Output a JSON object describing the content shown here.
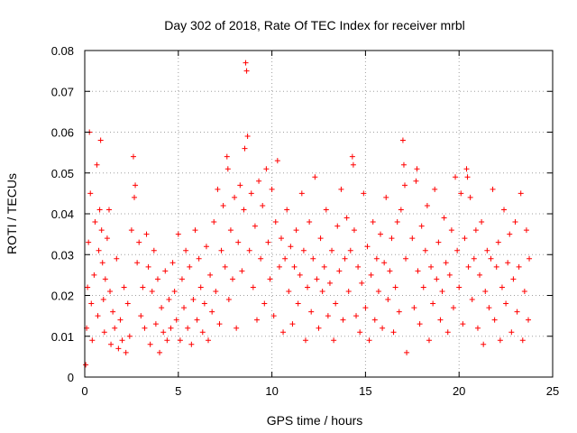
{
  "chart_data": {
    "type": "scatter",
    "title": "Day 302 of 2018, Rate Of TEC Index for receiver mrbl",
    "xlabel": "GPS time / hours",
    "ylabel": "ROTI / TECUs",
    "xlim": [
      0,
      25
    ],
    "ylim": [
      0,
      0.08
    ],
    "xticks": [
      0,
      5,
      10,
      15,
      20,
      25
    ],
    "xtick_labels": [
      "0",
      "5",
      "10",
      "15",
      "20",
      "25"
    ],
    "yticks": [
      0,
      0.01,
      0.02,
      0.03,
      0.04,
      0.05,
      0.06,
      0.07,
      0.08
    ],
    "ytick_labels": [
      "0",
      "0.01",
      "0.02",
      "0.03",
      "0.04",
      "0.05",
      "0.06",
      "0.07",
      "0.08"
    ],
    "grid": true,
    "marker": "+",
    "color": "#ff0000",
    "series": [
      {
        "points": [
          [
            0.05,
            0.003
          ],
          [
            0.1,
            0.012
          ],
          [
            0.15,
            0.022
          ],
          [
            0.2,
            0.033
          ],
          [
            0.25,
            0.06
          ],
          [
            0.3,
            0.045
          ],
          [
            0.35,
            0.018
          ],
          [
            0.4,
            0.009
          ],
          [
            0.5,
            0.025
          ],
          [
            0.55,
            0.038
          ],
          [
            0.65,
            0.052
          ],
          [
            0.7,
            0.015
          ],
          [
            0.75,
            0.031
          ],
          [
            0.8,
            0.041
          ],
          [
            0.85,
            0.058
          ],
          [
            0.9,
            0.036
          ],
          [
            0.95,
            0.028
          ],
          [
            1.0,
            0.019
          ],
          [
            1.05,
            0.011
          ],
          [
            1.1,
            0.024
          ],
          [
            1.2,
            0.034
          ],
          [
            1.3,
            0.041
          ],
          [
            1.35,
            0.021
          ],
          [
            1.4,
            0.008
          ],
          [
            1.5,
            0.016
          ],
          [
            1.6,
            0.012
          ],
          [
            1.7,
            0.029
          ],
          [
            1.8,
            0.007
          ],
          [
            1.9,
            0.014
          ],
          [
            2.0,
            0.009
          ],
          [
            2.1,
            0.022
          ],
          [
            2.2,
            0.006
          ],
          [
            2.3,
            0.018
          ],
          [
            2.4,
            0.01
          ],
          [
            2.5,
            0.036
          ],
          [
            2.6,
            0.054
          ],
          [
            2.65,
            0.044
          ],
          [
            2.7,
            0.047
          ],
          [
            2.8,
            0.028
          ],
          [
            2.9,
            0.033
          ],
          [
            3.0,
            0.015
          ],
          [
            3.1,
            0.022
          ],
          [
            3.2,
            0.012
          ],
          [
            3.3,
            0.035
          ],
          [
            3.4,
            0.027
          ],
          [
            3.5,
            0.008
          ],
          [
            3.6,
            0.021
          ],
          [
            3.7,
            0.031
          ],
          [
            3.8,
            0.013
          ],
          [
            3.9,
            0.024
          ],
          [
            4.0,
            0.006
          ],
          [
            4.1,
            0.017
          ],
          [
            4.2,
            0.011
          ],
          [
            4.3,
            0.026
          ],
          [
            4.4,
            0.009
          ],
          [
            4.5,
            0.019
          ],
          [
            4.6,
            0.012
          ],
          [
            4.7,
            0.028
          ],
          [
            4.8,
            0.021
          ],
          [
            4.9,
            0.014
          ],
          [
            5.0,
            0.035
          ],
          [
            5.1,
            0.009
          ],
          [
            5.2,
            0.024
          ],
          [
            5.3,
            0.017
          ],
          [
            5.4,
            0.031
          ],
          [
            5.5,
            0.012
          ],
          [
            5.6,
            0.027
          ],
          [
            5.7,
            0.008
          ],
          [
            5.8,
            0.019
          ],
          [
            5.9,
            0.036
          ],
          [
            6.0,
            0.014
          ],
          [
            6.1,
            0.029
          ],
          [
            6.2,
            0.022
          ],
          [
            6.3,
            0.011
          ],
          [
            6.4,
            0.018
          ],
          [
            6.5,
            0.032
          ],
          [
            6.6,
            0.009
          ],
          [
            6.7,
            0.025
          ],
          [
            6.8,
            0.016
          ],
          [
            6.9,
            0.038
          ],
          [
            7.0,
            0.021
          ],
          [
            7.1,
            0.046
          ],
          [
            7.2,
            0.013
          ],
          [
            7.3,
            0.031
          ],
          [
            7.4,
            0.042
          ],
          [
            7.5,
            0.027
          ],
          [
            7.6,
            0.054
          ],
          [
            7.65,
            0.051
          ],
          [
            7.7,
            0.019
          ],
          [
            7.8,
            0.036
          ],
          [
            7.9,
            0.024
          ],
          [
            8.0,
            0.044
          ],
          [
            8.1,
            0.012
          ],
          [
            8.2,
            0.033
          ],
          [
            8.3,
            0.047
          ],
          [
            8.4,
            0.026
          ],
          [
            8.5,
            0.041
          ],
          [
            8.55,
            0.056
          ],
          [
            8.6,
            0.077
          ],
          [
            8.65,
            0.075
          ],
          [
            8.7,
            0.059
          ],
          [
            8.8,
            0.031
          ],
          [
            8.9,
            0.045
          ],
          [
            9.0,
            0.022
          ],
          [
            9.1,
            0.037
          ],
          [
            9.2,
            0.014
          ],
          [
            9.3,
            0.048
          ],
          [
            9.4,
            0.029
          ],
          [
            9.5,
            0.042
          ],
          [
            9.6,
            0.018
          ],
          [
            9.7,
            0.051
          ],
          [
            9.8,
            0.033
          ],
          [
            9.9,
            0.024
          ],
          [
            10.0,
            0.046
          ],
          [
            10.1,
            0.015
          ],
          [
            10.2,
            0.038
          ],
          [
            10.3,
            0.053
          ],
          [
            10.4,
            0.027
          ],
          [
            10.5,
            0.034
          ],
          [
            10.6,
            0.011
          ],
          [
            10.7,
            0.029
          ],
          [
            10.8,
            0.041
          ],
          [
            10.9,
            0.021
          ],
          [
            11.0,
            0.032
          ],
          [
            11.1,
            0.013
          ],
          [
            11.2,
            0.027
          ],
          [
            11.3,
            0.036
          ],
          [
            11.4,
            0.018
          ],
          [
            11.5,
            0.025
          ],
          [
            11.6,
            0.045
          ],
          [
            11.7,
            0.031
          ],
          [
            11.8,
            0.009
          ],
          [
            11.9,
            0.022
          ],
          [
            12.0,
            0.038
          ],
          [
            12.1,
            0.016
          ],
          [
            12.2,
            0.029
          ],
          [
            12.3,
            0.049
          ],
          [
            12.4,
            0.024
          ],
          [
            12.5,
            0.012
          ],
          [
            12.6,
            0.034
          ],
          [
            12.7,
            0.021
          ],
          [
            12.8,
            0.027
          ],
          [
            12.9,
            0.041
          ],
          [
            13.0,
            0.015
          ],
          [
            13.1,
            0.023
          ],
          [
            13.2,
            0.031
          ],
          [
            13.3,
            0.009
          ],
          [
            13.4,
            0.018
          ],
          [
            13.5,
            0.037
          ],
          [
            13.6,
            0.026
          ],
          [
            13.7,
            0.046
          ],
          [
            13.8,
            0.014
          ],
          [
            13.9,
            0.029
          ],
          [
            14.0,
            0.039
          ],
          [
            14.1,
            0.021
          ],
          [
            14.2,
            0.031
          ],
          [
            14.3,
            0.054
          ],
          [
            14.35,
            0.052
          ],
          [
            14.4,
            0.036
          ],
          [
            14.5,
            0.015
          ],
          [
            14.6,
            0.027
          ],
          [
            14.7,
            0.011
          ],
          [
            14.8,
            0.023
          ],
          [
            14.9,
            0.045
          ],
          [
            15.0,
            0.017
          ],
          [
            15.1,
            0.032
          ],
          [
            15.2,
            0.009
          ],
          [
            15.3,
            0.025
          ],
          [
            15.4,
            0.038
          ],
          [
            15.5,
            0.014
          ],
          [
            15.6,
            0.029
          ],
          [
            15.7,
            0.021
          ],
          [
            15.8,
            0.035
          ],
          [
            15.9,
            0.012
          ],
          [
            16.0,
            0.028
          ],
          [
            16.1,
            0.044
          ],
          [
            16.2,
            0.019
          ],
          [
            16.3,
            0.026
          ],
          [
            16.4,
            0.034
          ],
          [
            16.5,
            0.011
          ],
          [
            16.6,
            0.022
          ],
          [
            16.7,
            0.038
          ],
          [
            16.8,
            0.016
          ],
          [
            16.9,
            0.041
          ],
          [
            17.0,
            0.058
          ],
          [
            17.05,
            0.052
          ],
          [
            17.1,
            0.047
          ],
          [
            17.15,
            0.029
          ],
          [
            17.2,
            0.006
          ],
          [
            17.5,
            0.034
          ],
          [
            17.6,
            0.017
          ],
          [
            17.7,
            0.048
          ],
          [
            17.75,
            0.051
          ],
          [
            17.8,
            0.026
          ],
          [
            17.9,
            0.013
          ],
          [
            18.0,
            0.037
          ],
          [
            18.1,
            0.022
          ],
          [
            18.2,
            0.031
          ],
          [
            18.3,
            0.042
          ],
          [
            18.4,
            0.009
          ],
          [
            18.5,
            0.027
          ],
          [
            18.6,
            0.018
          ],
          [
            18.7,
            0.046
          ],
          [
            18.8,
            0.024
          ],
          [
            18.9,
            0.033
          ],
          [
            19.0,
            0.014
          ],
          [
            19.1,
            0.021
          ],
          [
            19.2,
            0.039
          ],
          [
            19.3,
            0.028
          ],
          [
            19.4,
            0.011
          ],
          [
            19.5,
            0.025
          ],
          [
            19.6,
            0.036
          ],
          [
            19.7,
            0.017
          ],
          [
            19.8,
            0.049
          ],
          [
            19.9,
            0.031
          ],
          [
            20.0,
            0.022
          ],
          [
            20.1,
            0.045
          ],
          [
            20.2,
            0.013
          ],
          [
            20.3,
            0.034
          ],
          [
            20.4,
            0.051
          ],
          [
            20.45,
            0.049
          ],
          [
            20.5,
            0.027
          ],
          [
            20.6,
            0.044
          ],
          [
            20.7,
            0.019
          ],
          [
            20.8,
            0.029
          ],
          [
            20.9,
            0.036
          ],
          [
            21.0,
            0.012
          ],
          [
            21.1,
            0.025
          ],
          [
            21.2,
            0.038
          ],
          [
            21.3,
            0.008
          ],
          [
            21.4,
            0.021
          ],
          [
            21.5,
            0.031
          ],
          [
            21.6,
            0.017
          ],
          [
            21.7,
            0.029
          ],
          [
            21.8,
            0.046
          ],
          [
            21.9,
            0.014
          ],
          [
            22.0,
            0.027
          ],
          [
            22.1,
            0.033
          ],
          [
            22.2,
            0.009
          ],
          [
            22.3,
            0.022
          ],
          [
            22.4,
            0.041
          ],
          [
            22.5,
            0.018
          ],
          [
            22.6,
            0.028
          ],
          [
            22.7,
            0.035
          ],
          [
            22.8,
            0.011
          ],
          [
            22.9,
            0.024
          ],
          [
            23.0,
            0.038
          ],
          [
            23.1,
            0.016
          ],
          [
            23.2,
            0.027
          ],
          [
            23.3,
            0.045
          ],
          [
            23.4,
            0.009
          ],
          [
            23.5,
            0.021
          ],
          [
            23.6,
            0.036
          ],
          [
            23.7,
            0.014
          ],
          [
            23.75,
            0.029
          ]
        ]
      }
    ]
  }
}
